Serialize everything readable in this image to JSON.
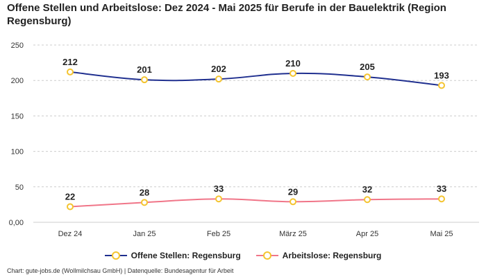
{
  "chart_data": {
    "type": "line",
    "title": "Offene Stellen und Arbeitslose: Dez 2024 - Mai 2025 für Berufe in der Bauelektrik (Region Regensburg)",
    "categories": [
      "Dez 24",
      "Jan 25",
      "Feb 25",
      "März 25",
      "Apr 25",
      "Mai 25"
    ],
    "yticks": [
      "0,00",
      "50",
      "100",
      "150",
      "200",
      "250"
    ],
    "ylim": [
      0,
      250
    ],
    "grid": true,
    "legend_position": "bottom",
    "series": [
      {
        "name": "Offene Stellen: Regensburg",
        "color": "#1f2f8f",
        "marker_color": "#f4c430",
        "values": [
          212,
          201,
          202,
          210,
          205,
          193
        ]
      },
      {
        "name": "Arbeitslose: Regensburg",
        "color": "#f07588",
        "marker_color": "#f4c430",
        "values": [
          22,
          28,
          33,
          29,
          32,
          33
        ]
      }
    ]
  },
  "footer": "Chart: gute-jobs.de (Wollmilchsau GmbH) | Datenquelle: Bundesagentur für Arbeit"
}
